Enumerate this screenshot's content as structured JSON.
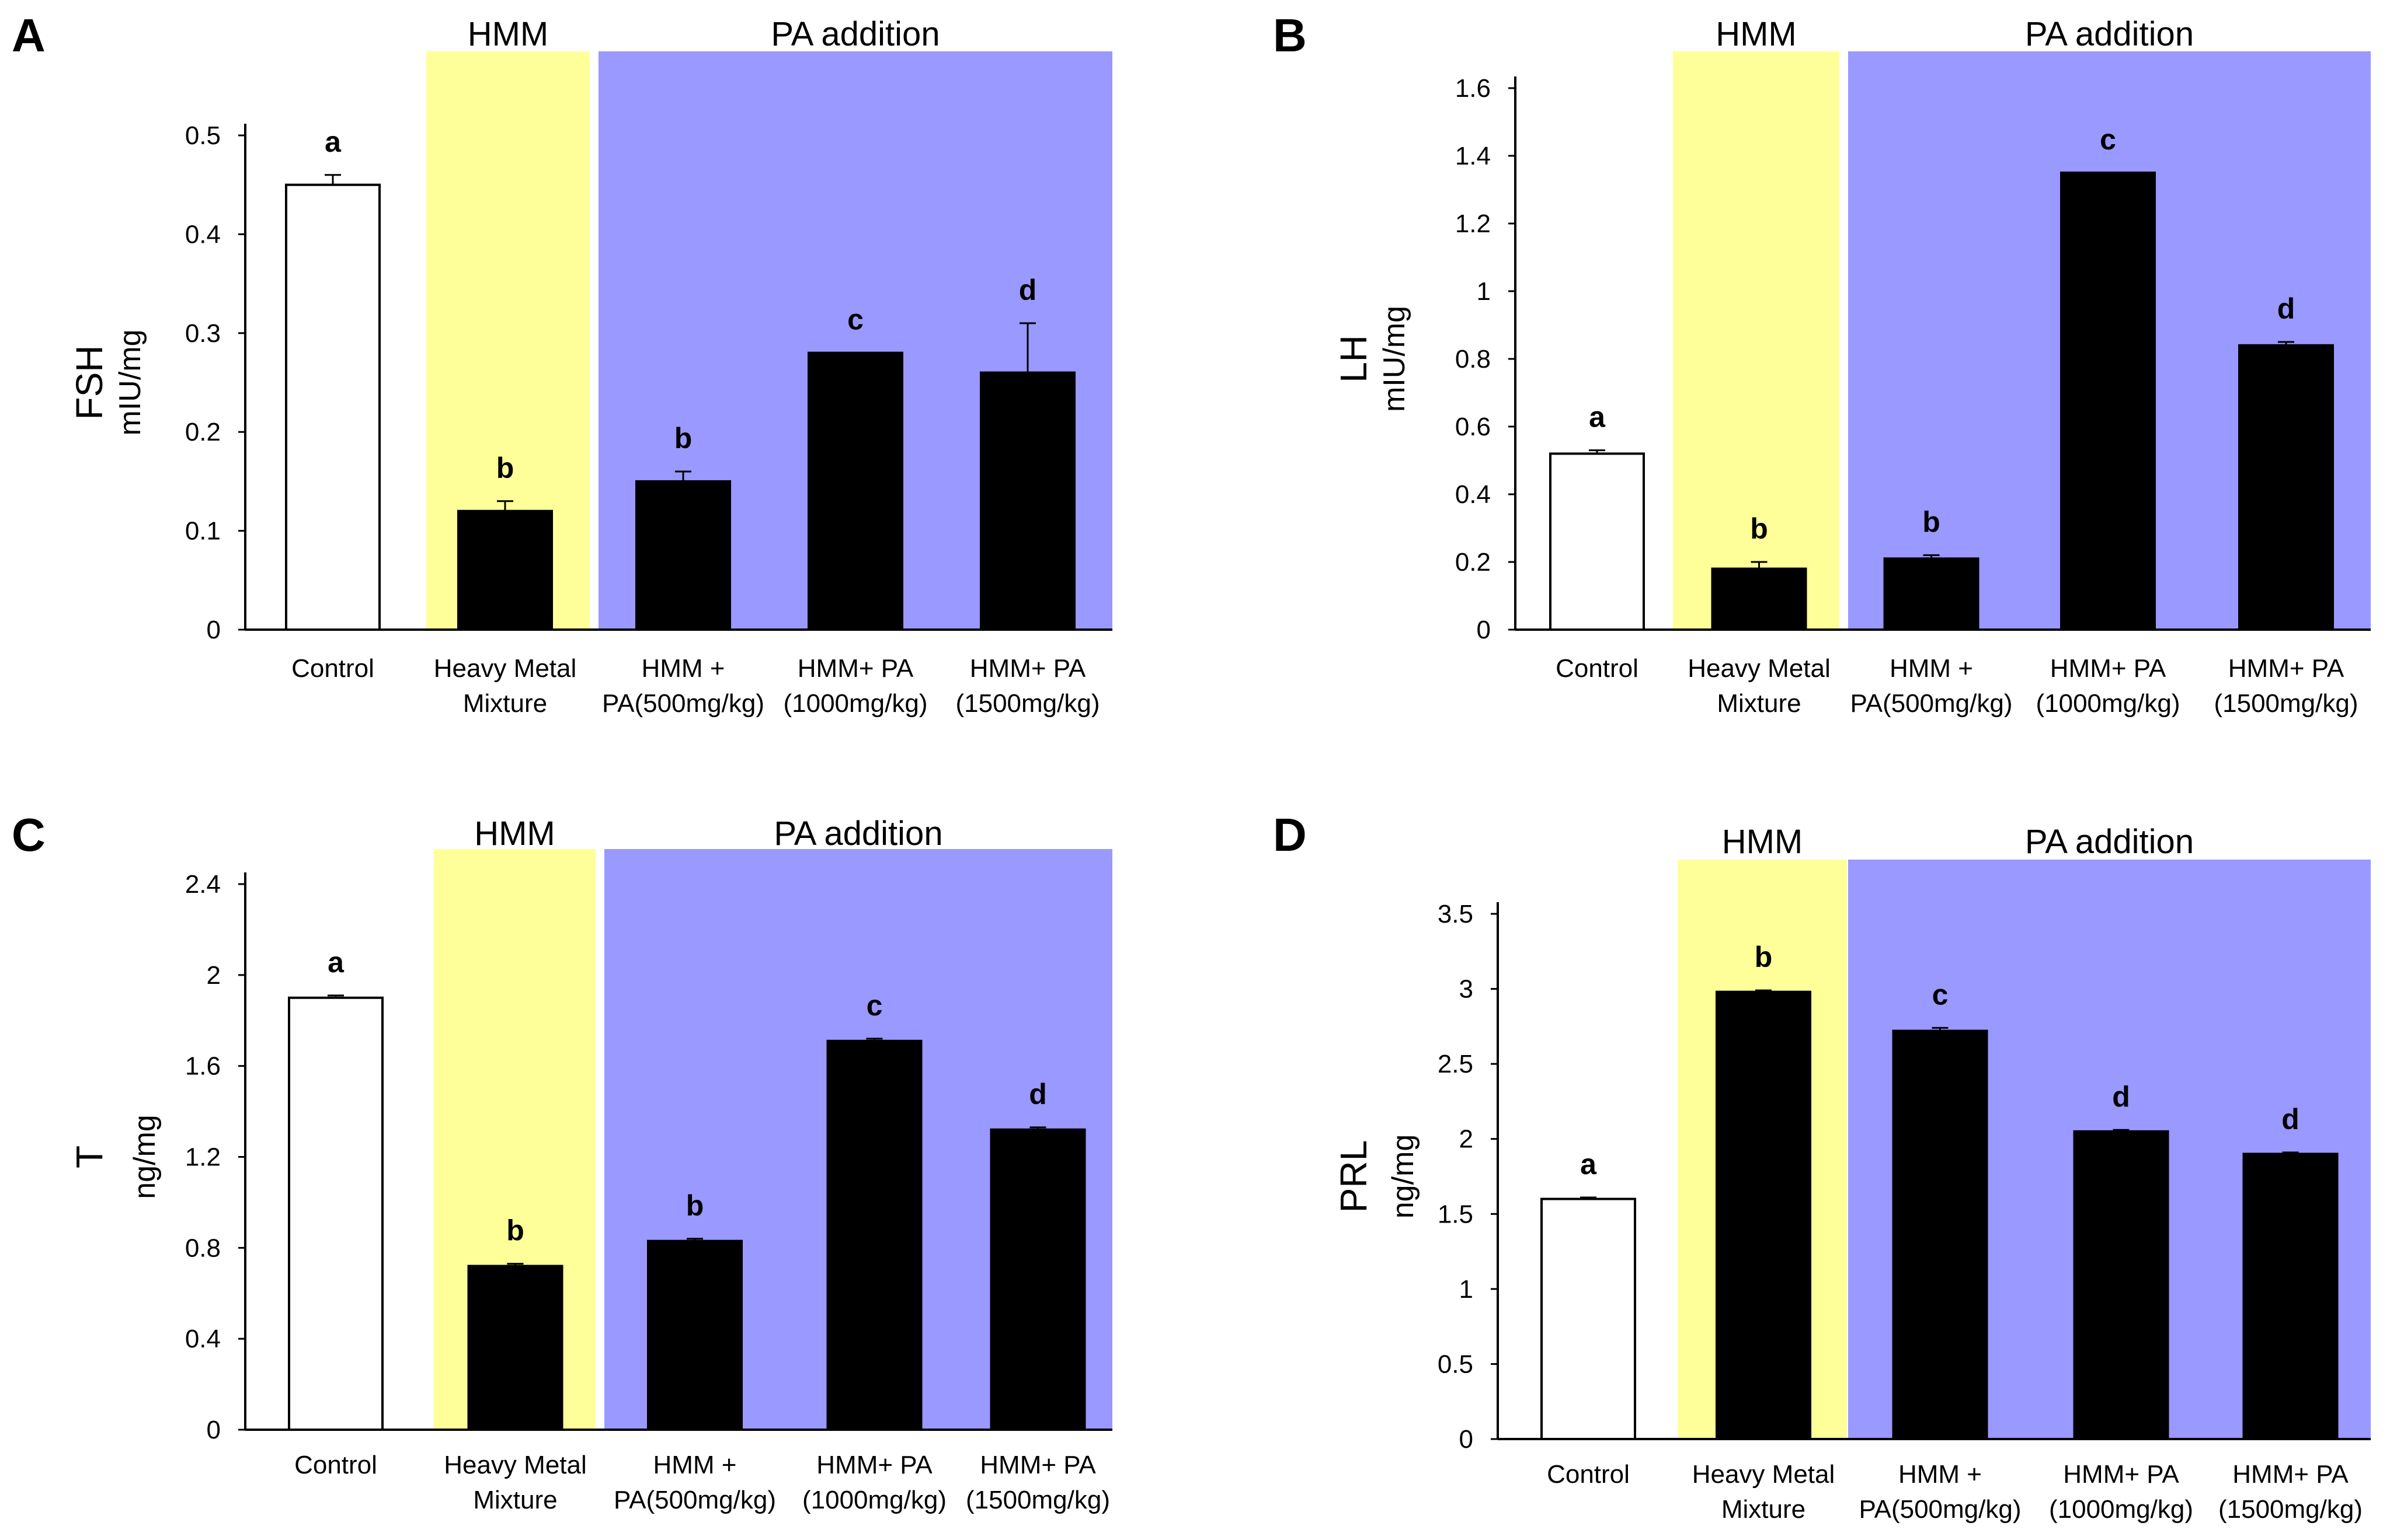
{
  "bands": {
    "hmm": "HMM",
    "pa": "PA addition"
  },
  "colors": {
    "hmm_band": "#ffff99",
    "pa_band": "#9999ff",
    "control_bar": "#ffffff",
    "treated_bar": "#000000"
  },
  "categories": [
    [
      "Control"
    ],
    [
      "Heavy Metal",
      "Mixture"
    ],
    [
      "HMM +",
      "PA(500mg/kg)"
    ],
    [
      "HMM+ PA",
      "(1000mg/kg)"
    ],
    [
      "HMM+ PA",
      "(1500mg/kg)"
    ]
  ],
  "chart_data": [
    {
      "type": "bar",
      "panel": "A",
      "ylabel": "FSH",
      "yunit": "mIU/mg",
      "ylim": [
        0,
        0.5
      ],
      "yticks": [
        "0",
        "0.1",
        "0.2",
        "0.3",
        "0.4",
        "0.5"
      ],
      "values": [
        0.45,
        0.12,
        0.15,
        0.28,
        0.26
      ],
      "errors": [
        0.01,
        0.01,
        0.01,
        0,
        0.05
      ],
      "significance": [
        "a",
        "b",
        "b",
        "c",
        "d"
      ]
    },
    {
      "type": "bar",
      "panel": "B",
      "ylabel": "LH",
      "yunit": "mIU/mg",
      "ylim": [
        0,
        1.6
      ],
      "yticks": [
        "0",
        "0.2",
        "0.4",
        "0.6",
        "0.8",
        "1",
        "1.2",
        "1.4",
        "1.6"
      ],
      "values": [
        0.52,
        0.18,
        0.21,
        1.35,
        0.84
      ],
      "errors": [
        0.01,
        0.02,
        0.01,
        0,
        0.01
      ],
      "significance": [
        "a",
        "b",
        "b",
        "c",
        "d"
      ]
    },
    {
      "type": "bar",
      "panel": "C",
      "ylabel": "T",
      "yunit": "ng/mg",
      "ylim": [
        0,
        2.4
      ],
      "yticks": [
        "0",
        "0.4",
        "0.8",
        "1.2",
        "1.6",
        "2",
        "2.4"
      ],
      "values": [
        1.9,
        0.72,
        0.83,
        1.71,
        1.32
      ],
      "errors": [
        0.01,
        0.01,
        0.01,
        0.01,
        0.01
      ],
      "significance": [
        "a",
        "b",
        "b",
        "c",
        "d"
      ]
    },
    {
      "type": "bar",
      "panel": "D",
      "ylabel": "PRL",
      "yunit": "ng/mg",
      "ylim": [
        0,
        3.5
      ],
      "yticks": [
        "0",
        "0.5",
        "1",
        "1.5",
        "2",
        "2.5",
        "3",
        "3.5"
      ],
      "values": [
        1.6,
        2.98,
        2.72,
        2.05,
        1.9
      ],
      "errors": [
        0.01,
        0.01,
        0.02,
        0.01,
        0.01
      ],
      "significance": [
        "a",
        "b",
        "c",
        "d",
        "d"
      ]
    }
  ]
}
